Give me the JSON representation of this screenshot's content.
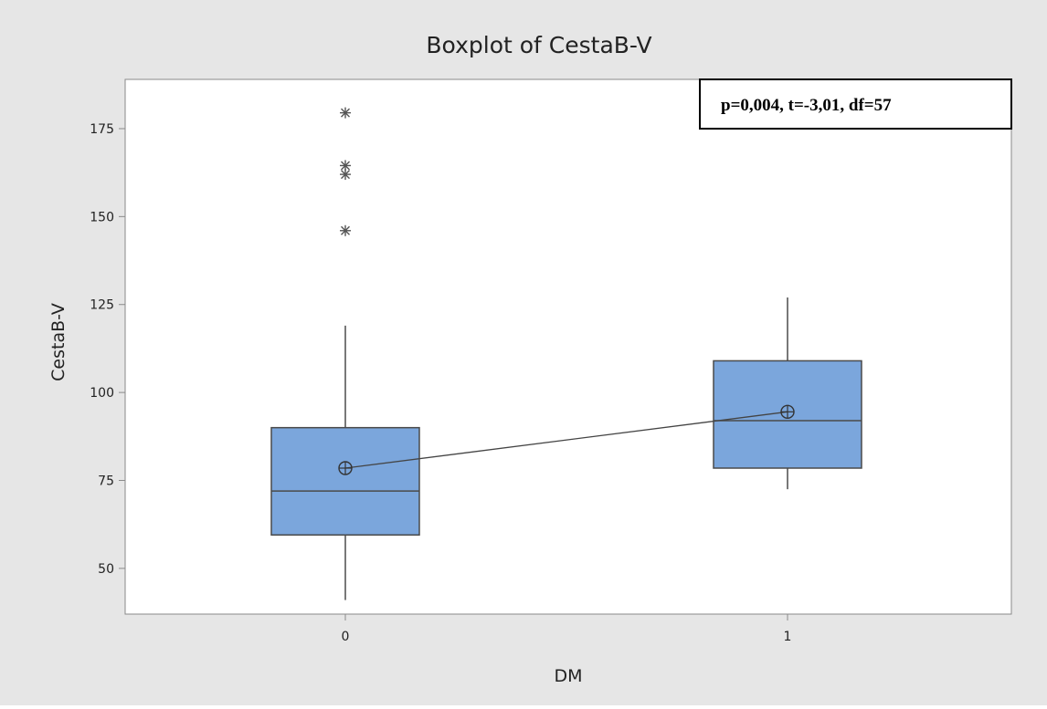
{
  "chart_data": {
    "type": "boxplot",
    "title": "Boxplot of CestaB-V",
    "xlabel": "DM",
    "ylabel": "CestaB-V",
    "categories": [
      "0",
      "1"
    ],
    "yticks": [
      50,
      75,
      100,
      125,
      150,
      175
    ],
    "ylim": [
      37,
      189
    ],
    "grid": false,
    "boxes": [
      {
        "category": "0",
        "whisker_low": 41,
        "q1": 59.5,
        "median": 72,
        "q3": 90,
        "whisker_high": 119,
        "mean": 78.5,
        "outliers": [
          146,
          162,
          164.5,
          179.5
        ]
      },
      {
        "category": "1",
        "whisker_low": 72.5,
        "q1": 78.5,
        "median": 92,
        "q3": 109,
        "whisker_high": 127,
        "mean": 94.5,
        "outliers": []
      }
    ],
    "mean_connect_line": true,
    "annotation": "p=0,004, t=-3,01, df=57",
    "colors": {
      "background": "#e6e6e6",
      "plot_area": "#ffffff",
      "box_fill": "#7ba6dc",
      "box_stroke": "#4a4a4a",
      "axis": "#8a8a8a"
    }
  }
}
